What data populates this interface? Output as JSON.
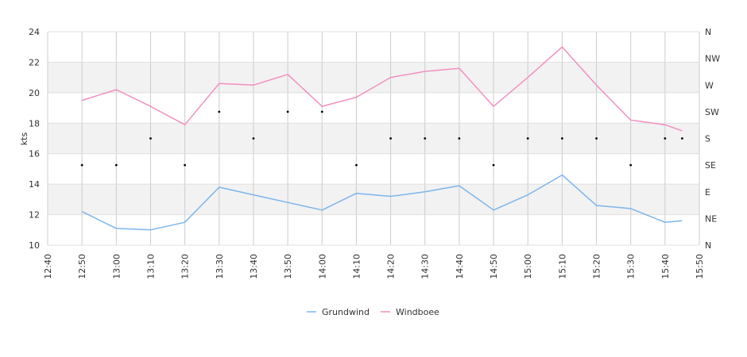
{
  "chart_data": {
    "type": "line",
    "title": "",
    "xlabel": "",
    "ylabel": "kts",
    "ylim": [
      10,
      24
    ],
    "yticks": [
      10,
      12,
      14,
      16,
      18,
      20,
      22,
      24
    ],
    "xticks": [
      "12:40",
      "12:50",
      "13:00",
      "13:10",
      "13:20",
      "13:30",
      "13:40",
      "13:50",
      "14:00",
      "14:10",
      "14:20",
      "14:30",
      "14:40",
      "14:50",
      "15:00",
      "15:10",
      "15:20",
      "15:30",
      "15:40",
      "15:50"
    ],
    "right_axis": {
      "labels": [
        "N",
        "NE",
        "E",
        "SE",
        "S",
        "SW",
        "W",
        "NW",
        "N"
      ]
    },
    "grid": true,
    "legend": "bottom",
    "x": [
      "12:50",
      "13:00",
      "13:10",
      "13:20",
      "13:30",
      "13:40",
      "13:50",
      "14:00",
      "14:10",
      "14:20",
      "14:30",
      "14:40",
      "14:50",
      "15:00",
      "15:10",
      "15:20",
      "15:30",
      "15:40",
      "15:45"
    ],
    "series": [
      {
        "name": "Grundwind",
        "color": "#7cb5ec",
        "values": [
          12.2,
          11.1,
          11.0,
          11.5,
          13.8,
          13.3,
          12.8,
          12.3,
          13.4,
          13.2,
          13.5,
          13.9,
          12.3,
          13.3,
          14.6,
          12.6,
          12.4,
          11.5,
          11.6
        ]
      },
      {
        "name": "Windboee",
        "color": "#f28fbf",
        "values": [
          19.5,
          20.2,
          19.1,
          17.9,
          20.6,
          20.5,
          21.2,
          19.1,
          19.7,
          21.0,
          21.4,
          21.6,
          19.1,
          21.0,
          23.0,
          20.5,
          18.2,
          17.9,
          17.5
        ]
      }
    ],
    "direction_values": [
      "SE",
      "SE",
      "S",
      "SE",
      "SW",
      "S",
      "SW",
      "SW",
      "SE",
      "S",
      "S",
      "S",
      "SE",
      "S",
      "S",
      "S",
      "SE",
      "S",
      "S"
    ],
    "direction_color": "#000000"
  }
}
